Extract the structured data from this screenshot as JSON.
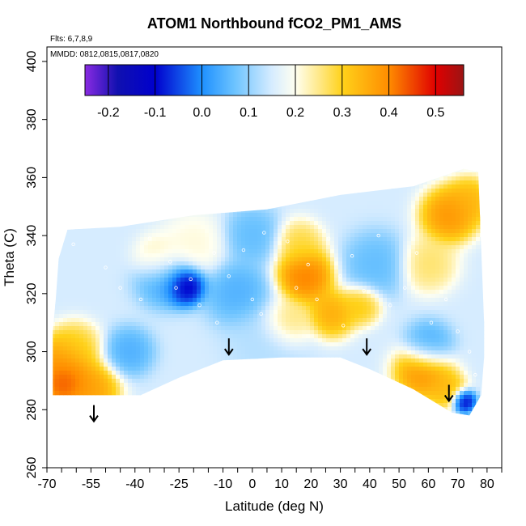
{
  "chart_data": {
    "type": "heatmap",
    "title": "ATOM1 Northbound fCO2_PM1_AMS",
    "annotations": [
      "Flts: 6,7,8,9",
      "MMDD: 0812,0815,0817,0820"
    ],
    "xlabel": "Latitude (deg N)",
    "ylabel": "Theta (C)",
    "xlim": [
      -70,
      85
    ],
    "ylim": [
      260,
      405
    ],
    "x_ticks": [
      -70,
      -55,
      -40,
      -25,
      -10,
      0,
      10,
      20,
      30,
      40,
      50,
      60,
      70,
      80
    ],
    "x_tick_labels": [
      "-70",
      "-55",
      "-40",
      "-25",
      "-10",
      "0",
      "10",
      "20",
      "30",
      "40",
      "50",
      "60",
      "70",
      "80"
    ],
    "x_minor_ticks": [
      -65,
      -60,
      -50,
      -45,
      -35,
      -30,
      -20,
      -15,
      -5,
      5,
      15,
      25,
      35,
      45,
      55,
      65,
      75,
      85
    ],
    "y_ticks": [
      260,
      280,
      300,
      320,
      340,
      360,
      380,
      400
    ],
    "y_tick_labels": [
      "260",
      "280",
      "300",
      "320",
      "340",
      "360",
      "380",
      "400"
    ],
    "grid": false,
    "colorbar": {
      "placement": "top",
      "range": [
        -0.25,
        0.56
      ],
      "ticks": [
        -0.2,
        -0.1,
        0.0,
        0.1,
        0.2,
        0.3,
        0.4,
        0.5
      ],
      "tick_labels": [
        "-0.2",
        "-0.1",
        "0.0",
        "0.1",
        "0.2",
        "0.3",
        "0.4",
        "0.5"
      ],
      "stops": [
        {
          "v": -0.25,
          "color": "#8a2be2"
        },
        {
          "v": -0.18,
          "color": "#1010b0"
        },
        {
          "v": -0.1,
          "color": "#0000cd"
        },
        {
          "v": 0.0,
          "color": "#1e90ff"
        },
        {
          "v": 0.07,
          "color": "#6cc3ff"
        },
        {
          "v": 0.15,
          "color": "#d6ecff"
        },
        {
          "v": 0.2,
          "color": "#fffff0"
        },
        {
          "v": 0.25,
          "color": "#ffe98a"
        },
        {
          "v": 0.3,
          "color": "#ffd21a"
        },
        {
          "v": 0.4,
          "color": "#ff8c00"
        },
        {
          "v": 0.5,
          "color": "#e00000"
        },
        {
          "v": 0.56,
          "color": "#9b1414"
        }
      ]
    },
    "domain_outline": [
      {
        "lat": -68,
        "theta": 285
      },
      {
        "lat": -68,
        "theta": 307
      },
      {
        "lat": -67,
        "theta": 318
      },
      {
        "lat": -66,
        "theta": 332
      },
      {
        "lat": -63,
        "theta": 342
      },
      {
        "lat": -45,
        "theta": 343
      },
      {
        "lat": -20,
        "theta": 347
      },
      {
        "lat": 5,
        "theta": 349
      },
      {
        "lat": 30,
        "theta": 354
      },
      {
        "lat": 55,
        "theta": 357
      },
      {
        "lat": 72,
        "theta": 363
      },
      {
        "lat": 77,
        "theta": 362
      },
      {
        "lat": 78,
        "theta": 336
      },
      {
        "lat": 79,
        "theta": 310
      },
      {
        "lat": 79,
        "theta": 298
      },
      {
        "lat": 78,
        "theta": 285
      },
      {
        "lat": 74,
        "theta": 278
      },
      {
        "lat": 68,
        "theta": 279
      },
      {
        "lat": 55,
        "theta": 287
      },
      {
        "lat": 40,
        "theta": 294
      },
      {
        "lat": 30,
        "theta": 298
      },
      {
        "lat": 10,
        "theta": 298
      },
      {
        "lat": -10,
        "theta": 297
      },
      {
        "lat": -25,
        "theta": 291
      },
      {
        "lat": -38,
        "theta": 285
      }
    ],
    "field": {
      "background": 0.15,
      "features": [
        {
          "lat": -64,
          "theta": 297,
          "value": 0.42,
          "r": 7
        },
        {
          "lat": -64,
          "theta": 289,
          "value": 0.48,
          "r": 6
        },
        {
          "lat": -55,
          "theta": 287,
          "value": 0.4,
          "r": 7
        },
        {
          "lat": -60,
          "theta": 302,
          "value": 0.3,
          "r": 6
        },
        {
          "lat": -23,
          "theta": 323,
          "value": -0.18,
          "r": 5
        },
        {
          "lat": -30,
          "theta": 325,
          "value": 0.02,
          "r": 7
        },
        {
          "lat": -5,
          "theta": 320,
          "value": 0.03,
          "r": 8
        },
        {
          "lat": -20,
          "theta": 337,
          "value": 0.22,
          "r": 8
        },
        {
          "lat": -32,
          "theta": 332,
          "value": 0.25,
          "r": 6
        },
        {
          "lat": 18,
          "theta": 326,
          "value": 0.45,
          "r": 7
        },
        {
          "lat": 27,
          "theta": 313,
          "value": 0.38,
          "r": 6
        },
        {
          "lat": 12,
          "theta": 310,
          "value": 0.3,
          "r": 6
        },
        {
          "lat": 16,
          "theta": 337,
          "value": 0.3,
          "r": 6
        },
        {
          "lat": 37,
          "theta": 316,
          "value": 0.33,
          "r": 5
        },
        {
          "lat": 60,
          "theta": 330,
          "value": 0.28,
          "r": 7
        },
        {
          "lat": 67,
          "theta": 347,
          "value": 0.42,
          "r": 7
        },
        {
          "lat": 74,
          "theta": 352,
          "value": 0.36,
          "r": 6
        },
        {
          "lat": 58,
          "theta": 293,
          "value": 0.42,
          "r": 7
        },
        {
          "lat": 66,
          "theta": 287,
          "value": 0.35,
          "r": 5
        },
        {
          "lat": 72,
          "theta": 283,
          "value": -0.15,
          "r": 3
        },
        {
          "lat": 60,
          "theta": 302,
          "value": 0.02,
          "r": 6
        },
        {
          "lat": -42,
          "theta": 300,
          "value": 0.03,
          "r": 6
        },
        {
          "lat": 42,
          "theta": 330,
          "value": 0.05,
          "r": 8
        },
        {
          "lat": 0,
          "theta": 340,
          "value": 0.05,
          "r": 7
        },
        {
          "lat": 5,
          "theta": 304,
          "value": 0.12,
          "r": 10
        }
      ]
    },
    "profile_markers": [
      {
        "lat": -54,
        "theta": 276
      },
      {
        "lat": -8,
        "theta": 299
      },
      {
        "lat": 39,
        "theta": 299
      },
      {
        "lat": 67,
        "theta": 283
      }
    ],
    "sample_points": [
      {
        "lat": -61,
        "theta": 337
      },
      {
        "lat": -50,
        "theta": 329
      },
      {
        "lat": -45,
        "theta": 322
      },
      {
        "lat": -38,
        "theta": 318
      },
      {
        "lat": -35,
        "theta": 339
      },
      {
        "lat": -28,
        "theta": 331
      },
      {
        "lat": -26,
        "theta": 322
      },
      {
        "lat": -21,
        "theta": 325
      },
      {
        "lat": -18,
        "theta": 316
      },
      {
        "lat": -13,
        "theta": 334
      },
      {
        "lat": -8,
        "theta": 326
      },
      {
        "lat": -3,
        "theta": 335
      },
      {
        "lat": 0,
        "theta": 318
      },
      {
        "lat": 4,
        "theta": 341
      },
      {
        "lat": 8,
        "theta": 332
      },
      {
        "lat": 12,
        "theta": 338
      },
      {
        "lat": 15,
        "theta": 322
      },
      {
        "lat": 19,
        "theta": 330
      },
      {
        "lat": 22,
        "theta": 318
      },
      {
        "lat": 26,
        "theta": 339
      },
      {
        "lat": 30,
        "theta": 326
      },
      {
        "lat": 34,
        "theta": 333
      },
      {
        "lat": 38,
        "theta": 321
      },
      {
        "lat": 43,
        "theta": 340
      },
      {
        "lat": 47,
        "theta": 316
      },
      {
        "lat": 52,
        "theta": 322
      },
      {
        "lat": 56,
        "theta": 334
      },
      {
        "lat": 61,
        "theta": 310
      },
      {
        "lat": 66,
        "theta": 318
      },
      {
        "lat": 70,
        "theta": 307
      },
      {
        "lat": 74,
        "theta": 300
      },
      {
        "lat": 76,
        "theta": 292
      },
      {
        "lat": 72,
        "theta": 287
      },
      {
        "lat": 3,
        "theta": 313
      },
      {
        "lat": -12,
        "theta": 310
      },
      {
        "lat": 31,
        "theta": 309
      }
    ]
  }
}
